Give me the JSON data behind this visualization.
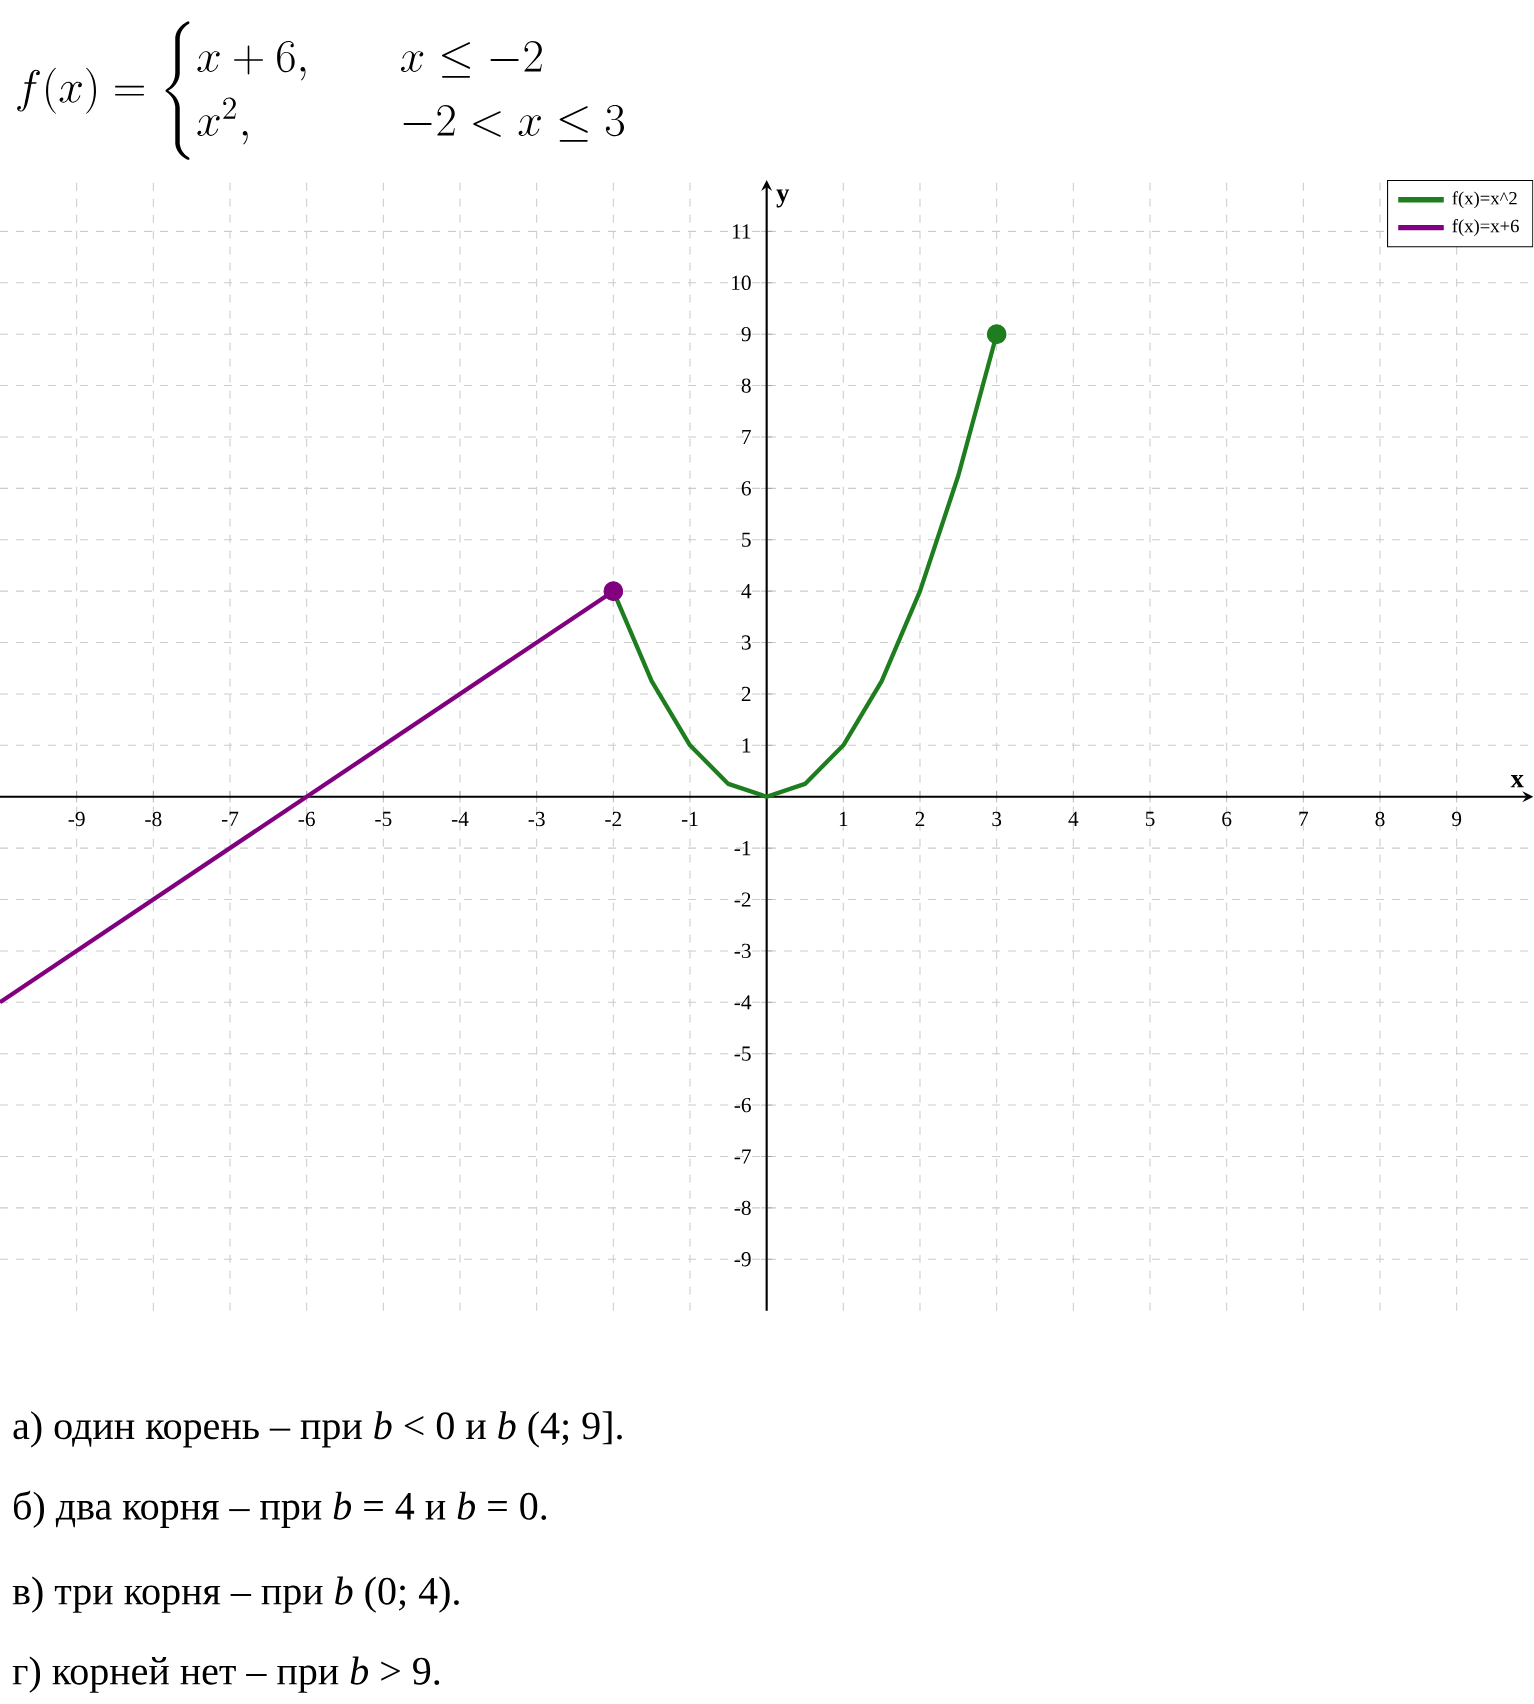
{
  "chart_data": {
    "type": "line",
    "title": "f(x) = \\begin{cases} x+6, & \\quad x \\le -2 \\\\ x^2, & \\quad -2 < x \\le 3 \\end{cases}",
    "xlabel": "x",
    "ylabel": "y",
    "xlim": [
      -10,
      10
    ],
    "ylim": [
      -10,
      12
    ],
    "xticks": [
      -9,
      -8,
      -7,
      -6,
      -5,
      -4,
      -3,
      -2,
      -1,
      1,
      2,
      3,
      4,
      5,
      6,
      7,
      8,
      9
    ],
    "yticks": [
      -9,
      -8,
      -7,
      -6,
      -5,
      -4,
      -3,
      -2,
      -1,
      1,
      2,
      3,
      4,
      5,
      6,
      7,
      8,
      9,
      10,
      11
    ],
    "grid": true,
    "legend": "top right",
    "series": [
      {
        "name": "f(x)=x^2",
        "color": "#1e7d1e",
        "x": [
          -2,
          -1.5,
          -1,
          -0.5,
          0,
          0.5,
          1,
          1.5,
          2,
          2.5,
          3
        ],
        "values": [
          4,
          2.25,
          1,
          0.25,
          0,
          0.25,
          1,
          2.25,
          4,
          6.25,
          9
        ]
      },
      {
        "name": "f(x)=x+6",
        "color": "#800080",
        "x": [
          -10,
          -2
        ],
        "values": [
          -4,
          4
        ]
      },
      {
        "type": "scatter",
        "marker": "circle",
        "color": "#1e7d1e",
        "x": [
          3
        ],
        "values": [
          9
        ]
      },
      {
        "type": "scatter",
        "marker": "circle",
        "color": "#800080",
        "x": [
          -2
        ],
        "values": [
          4
        ]
      }
    ],
    "annotations": [
      "а) один корень – при *b* < 0 и *b* (4; 9].",
      "б) два корня – при *b* = 4 и *b* = 0.",
      "в) три корня – при *b* (0; 4).",
      "г) корней нет – при *b* > 9."
    ]
  }
}
